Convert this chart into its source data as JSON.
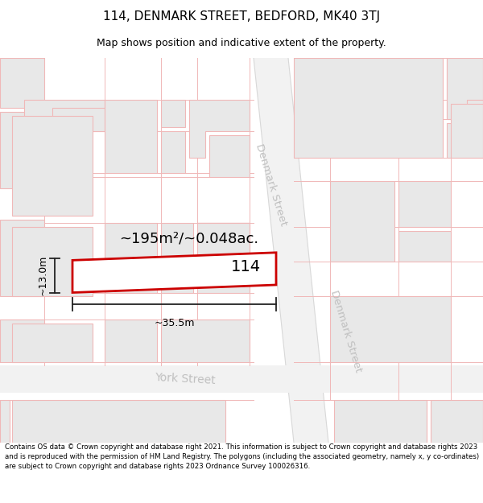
{
  "title": "114, DENMARK STREET, BEDFORD, MK40 3TJ",
  "subtitle": "Map shows position and indicative extent of the property.",
  "footer": "Contains OS data © Crown copyright and database right 2021. This information is subject to Crown copyright and database rights 2023 and is reproduced with the permission of HM Land Registry. The polygons (including the associated geometry, namely x, y co-ordinates) are subject to Crown copyright and database rights 2023 Ordnance Survey 100026316.",
  "area_text": "~195m²/~0.048ac.",
  "number_text": "114",
  "width_text": "~35.5m",
  "height_text": "~13.0m",
  "street1_text": "Denmark Street",
  "street2_text": "Denmark Street",
  "york_street_text": "York Street",
  "bg_color": "#ffffff",
  "map_bg": "#f8f8f8",
  "building_fill": "#e8e8e8",
  "road_line_color": "#f0b8b8",
  "highlight_edge": "#cc0000",
  "street_color": "#c0c0c0",
  "dim_color": "#222222",
  "title_fontsize": 11,
  "subtitle_fontsize": 9,
  "footer_fontsize": 6.2,
  "area_fontsize": 13,
  "number_fontsize": 14,
  "dim_fontsize": 9,
  "street_fontsize": 9.5,
  "york_fontsize": 10
}
